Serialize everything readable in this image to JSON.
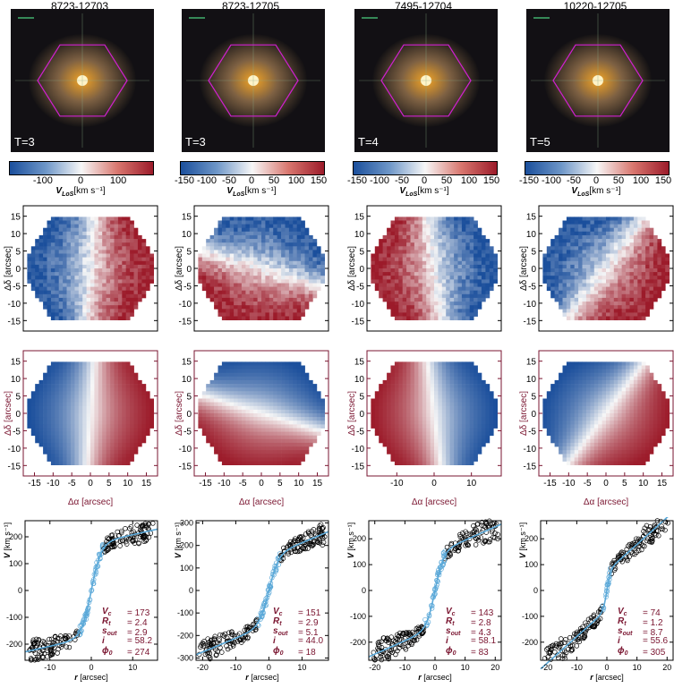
{
  "colorbar_label": "V",
  "colorbar_sub": "LoS",
  "colorbar_unit": "[km s⁻¹]",
  "colors": {
    "maroon": "#7a1530",
    "fit_line": "#5aa8d8",
    "galaxy_hex": "#d020d0",
    "blue": "#1b4f9c",
    "red": "#9c1b2a"
  },
  "labels": {
    "dec": "Δδ [arcsec]",
    "ra": "Δα [arcsec]",
    "radius": "r",
    "radius_unit": "[arcsec]",
    "vel": "V",
    "vel_unit": "[km s⁻¹]"
  },
  "param_names": [
    "V",
    "R",
    "s",
    "i",
    "ϕ"
  ],
  "param_subs": [
    "c",
    "t",
    "out",
    "",
    "0"
  ],
  "chart_data": [
    {
      "type": "scatter",
      "title": "8723-12703",
      "morph_type": "T=3",
      "vel_colorbar_ticks": [
        "-100",
        "0",
        "100"
      ],
      "vel_colorbar_vals": [
        -100,
        0,
        100
      ],
      "vel_colorbar_range": [
        -190,
        190
      ],
      "map_ticks_y": [
        "15",
        "10",
        "5",
        "0",
        "-5",
        "-10",
        "-15"
      ],
      "map_ticks_x": [
        "-15",
        "-10",
        "-5",
        "0",
        "5",
        "10",
        "15"
      ],
      "rot_curve": {
        "x_ticks": [
          "-10",
          "0",
          "10"
        ],
        "x_tick_vals": [
          -10,
          0,
          10
        ],
        "xlim": [
          -16,
          16
        ],
        "y_ticks": [
          "200",
          "100",
          "0",
          "-100",
          "-200"
        ],
        "y_tick_vals": [
          200,
          100,
          0,
          -100,
          -200
        ],
        "ylim": [
          -260,
          260
        ]
      },
      "params": {
        "Vc": 173,
        "Rt": 2.4,
        "s_out": 2.9,
        "i": 58.2,
        "phi0": 274
      },
      "params_text": [
        "173",
        "2.4",
        "2.9",
        "58.2",
        "274"
      ]
    },
    {
      "type": "scatter",
      "title": "8723-12705",
      "morph_type": "T=3",
      "vel_colorbar_ticks": [
        "-150",
        "-100",
        "-50",
        "0",
        "50",
        "100",
        "150"
      ],
      "vel_colorbar_vals": [
        -150,
        -100,
        -50,
        0,
        50,
        100,
        150
      ],
      "vel_colorbar_range": [
        -160,
        160
      ],
      "map_ticks_y": [
        "15",
        "10",
        "5",
        "0",
        "-5",
        "-10",
        "-15"
      ],
      "map_ticks_x": [
        "-15",
        "-10",
        "-5",
        "0",
        "5",
        "10",
        "15"
      ],
      "rot_curve": {
        "x_ticks": [
          "-20",
          "-10",
          "0",
          "10"
        ],
        "x_tick_vals": [
          -20,
          -10,
          0,
          10
        ],
        "xlim": [
          -22,
          18
        ],
        "y_ticks": [
          "300",
          "200",
          "100",
          "0",
          "-100",
          "-200",
          "-300"
        ],
        "y_tick_vals": [
          300,
          200,
          100,
          0,
          -100,
          -200,
          -300
        ],
        "ylim": [
          -310,
          310
        ]
      },
      "params": {
        "Vc": 151,
        "Rt": 2.9,
        "s_out": 5.1,
        "i": 44.0,
        "phi0": 18
      },
      "params_text": [
        "151",
        "2.9",
        "5.1",
        "44.0",
        "18"
      ]
    },
    {
      "type": "scatter",
      "title": "7495-12704",
      "morph_type": "T=4",
      "vel_colorbar_ticks": [
        "-150",
        "-100",
        "-50",
        "0",
        "50",
        "100",
        "150"
      ],
      "vel_colorbar_vals": [
        -150,
        -100,
        -50,
        0,
        50,
        100,
        150
      ],
      "vel_colorbar_range": [
        -160,
        160
      ],
      "map_ticks_y": [
        "15",
        "10",
        "5",
        "0",
        "-5",
        "-10",
        "-15"
      ],
      "map_ticks_x": [
        "-10",
        "0",
        "10"
      ],
      "rot_curve": {
        "x_ticks": [
          "-20",
          "-10",
          "0",
          "10",
          "20"
        ],
        "x_tick_vals": [
          -20,
          -10,
          0,
          10,
          20
        ],
        "xlim": [
          -22,
          22
        ],
        "y_ticks": [
          "200",
          "100",
          "0",
          "-100",
          "-200"
        ],
        "y_tick_vals": [
          200,
          100,
          0,
          -100,
          -200
        ],
        "ylim": [
          -270,
          270
        ]
      },
      "params": {
        "Vc": 143,
        "Rt": 2.8,
        "s_out": 4.3,
        "i": 58.1,
        "phi0": 83
      },
      "params_text": [
        "143",
        "2.8",
        "4.3",
        "58.1",
        "83"
      ]
    },
    {
      "type": "scatter",
      "title": "10220-12705",
      "morph_type": "T=5",
      "vel_colorbar_ticks": [
        "-150",
        "-100",
        "-50",
        "0",
        "50",
        "100",
        "150"
      ],
      "vel_colorbar_vals": [
        -150,
        -100,
        -50,
        0,
        50,
        100,
        150
      ],
      "vel_colorbar_range": [
        -160,
        160
      ],
      "map_ticks_y": [
        "15",
        "10",
        "5",
        "0",
        "-5",
        "-10",
        "-15"
      ],
      "map_ticks_x": [
        "-15",
        "-10",
        "-5",
        "0",
        "5",
        "10",
        "15"
      ],
      "rot_curve": {
        "x_ticks": [
          "-20",
          "-10",
          "0",
          "10",
          "20"
        ],
        "x_tick_vals": [
          -20,
          -10,
          0,
          10,
          20
        ],
        "xlim": [
          -22,
          22
        ],
        "y_ticks": [
          "200",
          "100",
          "0",
          "-100",
          "-200"
        ],
        "y_tick_vals": [
          200,
          100,
          0,
          -100,
          -200
        ],
        "ylim": [
          -270,
          270
        ]
      },
      "params": {
        "Vc": 74,
        "Rt": 1.2,
        "s_out": 8.7,
        "i": 55.6,
        "phi0": 305
      },
      "params_text": [
        "74",
        "1.2",
        "8.7",
        "55.6",
        "305"
      ]
    }
  ]
}
